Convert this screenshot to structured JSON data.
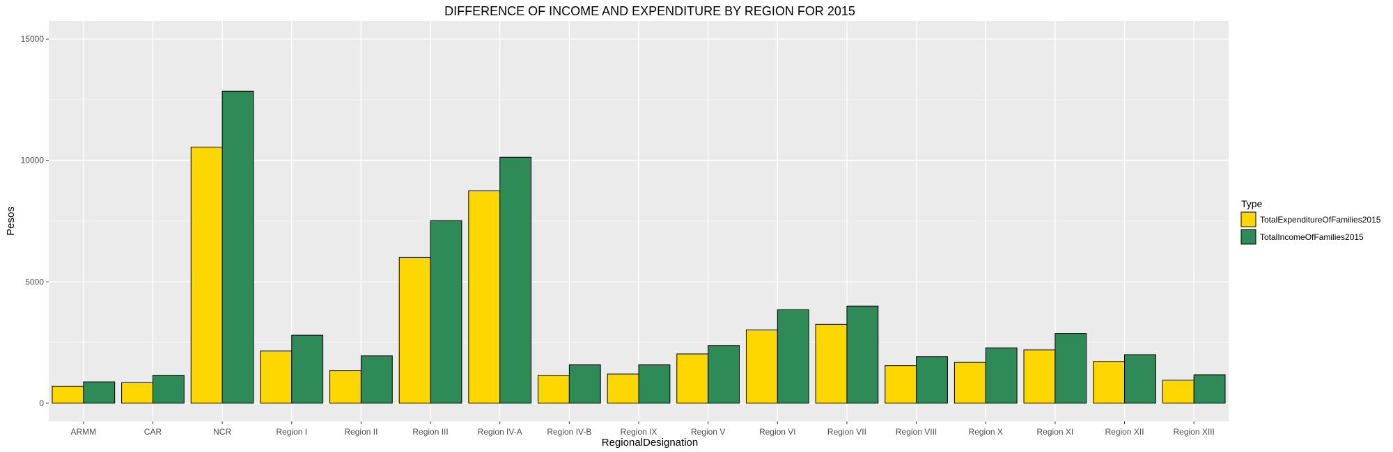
{
  "chart_data": {
    "type": "bar",
    "title": "DIFFERENCE OF INCOME AND EXPENDITURE BY REGION FOR 2015",
    "xlabel": "RegionalDesignation",
    "ylabel": "Pesos",
    "ylim": [
      -750,
      15750
    ],
    "yticks": [
      0,
      5000,
      10000,
      15000
    ],
    "grid": true,
    "legend": {
      "title": "Type",
      "placement": "right"
    },
    "categories": [
      "ARMM",
      "CAR",
      "NCR",
      "Region I",
      "Region II",
      "Region III",
      "Region IV-A",
      "Region IV-B",
      "Region IX",
      "Region V",
      "Region VI",
      "Region VII",
      "Region VIII",
      "Region X",
      "Region XI",
      "Region XII",
      "Region XIII"
    ],
    "series": [
      {
        "name": "TotalExpenditureOfFamilies2015",
        "color": "#FFD700",
        "values": [
          700,
          850,
          10550,
          2150,
          1350,
          6000,
          8750,
          1150,
          1200,
          2030,
          3020,
          3250,
          1550,
          1680,
          2200,
          1720,
          950
        ]
      },
      {
        "name": "TotalIncomeOfFamilies2015",
        "color": "#2E8B57",
        "values": [
          880,
          1150,
          12850,
          2800,
          1950,
          7520,
          10130,
          1580,
          1580,
          2380,
          3850,
          4000,
          1920,
          2280,
          2870,
          2000,
          1170
        ]
      }
    ]
  }
}
